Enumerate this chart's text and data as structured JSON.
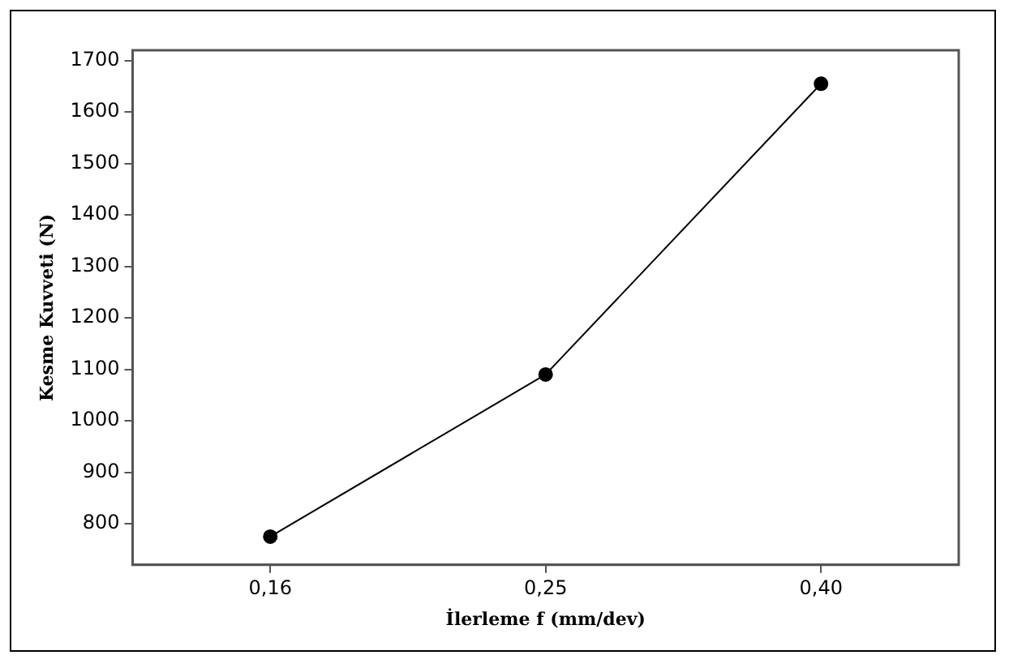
{
  "chart_data": {
    "type": "line",
    "xlabel": "İlerleme f (mm/dev)",
    "ylabel": "Kesme Kuvveti (N)",
    "categories": [
      "0,16",
      "0,25",
      "0,40"
    ],
    "series": [
      {
        "color": "#000000",
        "values": [
          775,
          1090,
          1655
        ]
      }
    ],
    "ylim": [
      720,
      1720
    ],
    "yticks": [
      800,
      900,
      1000,
      1100,
      1200,
      1300,
      1400,
      1500,
      1600,
      1700
    ],
    "grid": false,
    "legend": false,
    "marker": "circle",
    "line_style": "solid"
  }
}
